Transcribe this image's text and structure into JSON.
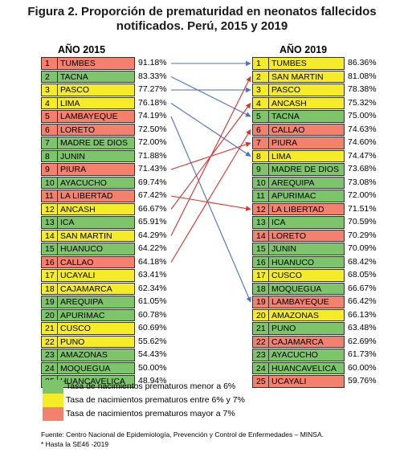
{
  "title_line1": "Figura 2. Proporción de prematuridad en neonatos fallecidos",
  "title_line2": "notificados. Perú, 2015 y 2019",
  "colors": {
    "green": "#7dc46a",
    "yellow": "#f5eb27",
    "red": "#f4806e",
    "arrow_blue": "#4a6fc9",
    "arrow_red": "#e0302a"
  },
  "chart_data": {
    "type": "table",
    "units": "%",
    "tables": [
      {
        "year_label": "AÑO 2015",
        "rows": [
          {
            "rank": "1",
            "name": "TUMBES",
            "value": "91.18%",
            "category": "red"
          },
          {
            "rank": "2",
            "name": "TACNA",
            "value": "83.33%",
            "category": "green"
          },
          {
            "rank": "3",
            "name": "PASCO",
            "value": "77.27%",
            "category": "yellow"
          },
          {
            "rank": "4",
            "name": "LIMA",
            "value": "76.18%",
            "category": "yellow"
          },
          {
            "rank": "5",
            "name": "LAMBAYEQUE",
            "value": "74.19%",
            "category": "red"
          },
          {
            "rank": "6",
            "name": "LORETO",
            "value": "72.50%",
            "category": "red"
          },
          {
            "rank": "7",
            "name": "MADRE DE DIOS",
            "value": "72.00%",
            "category": "green"
          },
          {
            "rank": "8",
            "name": "JUNIN",
            "value": "71.88%",
            "category": "green"
          },
          {
            "rank": "9",
            "name": "PIURA",
            "value": "71.43%",
            "category": "red"
          },
          {
            "rank": "10",
            "name": "AYACUCHO",
            "value": "69.74%",
            "category": "green"
          },
          {
            "rank": "11",
            "name": "LA LIBERTAD",
            "value": "67.42%",
            "category": "red"
          },
          {
            "rank": "12",
            "name": "ANCASH",
            "value": "66.67%",
            "category": "yellow"
          },
          {
            "rank": "13",
            "name": "ICA",
            "value": "65.91%",
            "category": "green"
          },
          {
            "rank": "14",
            "name": "SAN MARTIN",
            "value": "64.29%",
            "category": "yellow"
          },
          {
            "rank": "15",
            "name": "HUANUCO",
            "value": "64.22%",
            "category": "green"
          },
          {
            "rank": "16",
            "name": "CALLAO",
            "value": "64.18%",
            "category": "red"
          },
          {
            "rank": "17",
            "name": "UCAYALI",
            "value": "63.41%",
            "category": "yellow"
          },
          {
            "rank": "18",
            "name": "CAJAMARCA",
            "value": "62.34%",
            "category": "yellow"
          },
          {
            "rank": "19",
            "name": "AREQUIPA",
            "value": "61.05%",
            "category": "green"
          },
          {
            "rank": "20",
            "name": "APURIMAC",
            "value": "60.78%",
            "category": "green"
          },
          {
            "rank": "21",
            "name": "CUSCO",
            "value": "60.69%",
            "category": "yellow"
          },
          {
            "rank": "22",
            "name": "PUNO",
            "value": "55.62%",
            "category": "yellow"
          },
          {
            "rank": "23",
            "name": "AMAZONAS",
            "value": "54.43%",
            "category": "green"
          },
          {
            "rank": "24",
            "name": "MOQUEGUA",
            "value": "50.00%",
            "category": "green"
          },
          {
            "rank": "25",
            "name": "HUANCAVELICA",
            "value": "48.94%",
            "category": "green"
          }
        ]
      },
      {
        "year_label": "AÑO 2019",
        "rows": [
          {
            "rank": "1",
            "name": "TUMBES",
            "value": "86.36%",
            "category": "yellow"
          },
          {
            "rank": "2",
            "name": "SAN MARTIN",
            "value": "81.08%",
            "category": "yellow"
          },
          {
            "rank": "3",
            "name": "PASCO",
            "value": "78.38%",
            "category": "yellow"
          },
          {
            "rank": "4",
            "name": "ANCASH",
            "value": "75.32%",
            "category": "yellow"
          },
          {
            "rank": "5",
            "name": "TACNA",
            "value": "75.00%",
            "category": "green"
          },
          {
            "rank": "6",
            "name": "CALLAO",
            "value": "74.63%",
            "category": "red"
          },
          {
            "rank": "7",
            "name": "PIURA",
            "value": "74.60%",
            "category": "red"
          },
          {
            "rank": "8",
            "name": "LIMA",
            "value": "74.47%",
            "category": "yellow"
          },
          {
            "rank": "9",
            "name": "MADRE DE DIOS",
            "value": "73.68%",
            "category": "green"
          },
          {
            "rank": "10",
            "name": "AREQUIPA",
            "value": "73.08%",
            "category": "green"
          },
          {
            "rank": "11",
            "name": "APURIMAC",
            "value": "72.00%",
            "category": "green"
          },
          {
            "rank": "12",
            "name": "LA LIBERTAD",
            "value": "71.51%",
            "category": "red"
          },
          {
            "rank": "13",
            "name": "ICA",
            "value": "70.59%",
            "category": "green"
          },
          {
            "rank": "14",
            "name": "LORETO",
            "value": "70.29%",
            "category": "red"
          },
          {
            "rank": "15",
            "name": "JUNIN",
            "value": "70.09%",
            "category": "green"
          },
          {
            "rank": "16",
            "name": "HUANUCO",
            "value": "68.42%",
            "category": "green"
          },
          {
            "rank": "17",
            "name": "CUSCO",
            "value": "68.05%",
            "category": "yellow"
          },
          {
            "rank": "18",
            "name": "MOQUEGUA",
            "value": "66.67%",
            "category": "green"
          },
          {
            "rank": "19",
            "name": "LAMBAYEQUE",
            "value": "66.42%",
            "category": "red"
          },
          {
            "rank": "20",
            "name": "AMAZONAS",
            "value": "66.13%",
            "category": "yellow"
          },
          {
            "rank": "21",
            "name": "PUNO",
            "value": "63.48%",
            "category": "green"
          },
          {
            "rank": "22",
            "name": "CAJAMARCA",
            "value": "62.69%",
            "category": "red"
          },
          {
            "rank": "23",
            "name": "AYACUCHO",
            "value": "61.73%",
            "category": "green"
          },
          {
            "rank": "24",
            "name": "HUANCAVELICA",
            "value": "60.00%",
            "category": "green"
          },
          {
            "rank": "25",
            "name": "UCAYALI",
            "value": "59.76%",
            "category": "red"
          }
        ]
      }
    ],
    "arrows": [
      {
        "from_rank": 1,
        "to_rank": 1,
        "color": "blue"
      },
      {
        "from_rank": 2,
        "to_rank": 5,
        "color": "blue"
      },
      {
        "from_rank": 3,
        "to_rank": 3,
        "color": "blue"
      },
      {
        "from_rank": 4,
        "to_rank": 8,
        "color": "blue"
      },
      {
        "from_rank": 5,
        "to_rank": 19,
        "color": "blue"
      },
      {
        "from_rank": 9,
        "to_rank": 7,
        "color": "red"
      },
      {
        "from_rank": 11,
        "to_rank": 12,
        "color": "red"
      },
      {
        "from_rank": 12,
        "to_rank": 4,
        "color": "red"
      },
      {
        "from_rank": 14,
        "to_rank": 2,
        "color": "red"
      },
      {
        "from_rank": 16,
        "to_rank": 6,
        "color": "red"
      }
    ]
  },
  "legend": [
    {
      "category": "green",
      "label": "Tasa de nacimientos prematuros menor a 6%"
    },
    {
      "category": "yellow",
      "label": "Tasa de nacimientos prematuros entre 6% y 7%"
    },
    {
      "category": "red",
      "label": "Tasa de nacimientos prematuros mayor a 7%"
    }
  ],
  "source": "Fuente: Centro Nacional de Epidemiología, Prevención y Control de Enfermedades – MINSA.",
  "note": "* Hasta la SE46 -2019"
}
